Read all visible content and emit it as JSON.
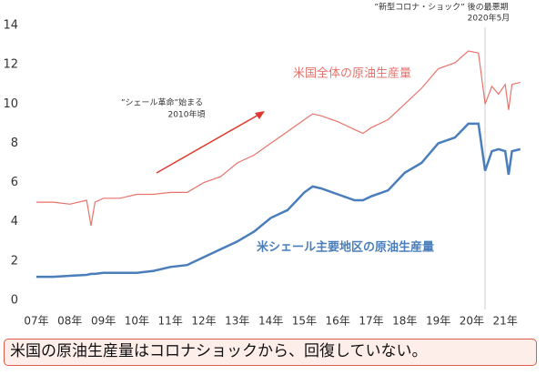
{
  "chart_data": {
    "type": "line",
    "x": [
      2007.0,
      2007.5,
      2008.0,
      2008.5,
      2008.63,
      2008.75,
      2009.0,
      2009.5,
      2010.0,
      2010.5,
      2011.0,
      2011.5,
      2012.0,
      2012.5,
      2013.0,
      2013.5,
      2014.0,
      2014.5,
      2015.0,
      2015.25,
      2015.5,
      2016.0,
      2016.5,
      2016.75,
      2017.0,
      2017.5,
      2018.0,
      2018.5,
      2019.0,
      2019.5,
      2019.9,
      2020.2,
      2020.4,
      2020.6,
      2020.8,
      2021.0,
      2021.1,
      2021.2,
      2021.45
    ],
    "series": [
      {
        "name": "米国全体の原油生産量",
        "color": "#e8736c",
        "values": [
          5.0,
          5.0,
          4.9,
          5.1,
          3.8,
          5.0,
          5.2,
          5.2,
          5.4,
          5.4,
          5.5,
          5.5,
          6.0,
          6.3,
          7.0,
          7.4,
          8.0,
          8.6,
          9.2,
          9.5,
          9.4,
          9.1,
          8.7,
          8.5,
          8.8,
          9.2,
          10.0,
          10.8,
          11.8,
          12.1,
          12.7,
          12.6,
          10.0,
          10.9,
          10.5,
          11.0,
          9.7,
          11.0,
          11.1
        ]
      },
      {
        "name": "米シェール主要地区の原油生産量",
        "color": "#4a7ebb",
        "values": [
          1.2,
          1.2,
          1.25,
          1.3,
          1.35,
          1.35,
          1.4,
          1.4,
          1.4,
          1.5,
          1.7,
          1.8,
          2.2,
          2.6,
          3.0,
          3.5,
          4.2,
          4.6,
          5.5,
          5.8,
          5.7,
          5.4,
          5.1,
          5.1,
          5.3,
          5.6,
          6.5,
          7.0,
          8.0,
          8.3,
          9.0,
          9.0,
          6.6,
          7.6,
          7.7,
          7.6,
          6.4,
          7.6,
          7.7
        ]
      }
    ],
    "xlim": [
      2007,
      2022
    ],
    "xticks": [
      {
        "value": 2007,
        "label": "07年"
      },
      {
        "value": 2008,
        "label": "08年"
      },
      {
        "value": 2009,
        "label": "09年"
      },
      {
        "value": 2010,
        "label": "10年"
      },
      {
        "value": 2011,
        "label": "11年"
      },
      {
        "value": 2012,
        "label": "12年"
      },
      {
        "value": 2013,
        "label": "13年"
      },
      {
        "value": 2014,
        "label": "14年"
      },
      {
        "value": 2015,
        "label": "15年"
      },
      {
        "value": 2016,
        "label": "16年"
      },
      {
        "value": 2017,
        "label": "17年"
      },
      {
        "value": 2018,
        "label": "18年"
      },
      {
        "value": 2019,
        "label": "19年"
      },
      {
        "value": 2020,
        "label": "20年"
      },
      {
        "value": 2021,
        "label": "21年"
      }
    ],
    "ylim": [
      0,
      14
    ],
    "yticks": [
      0,
      2,
      4,
      6,
      8,
      10,
      12,
      14
    ],
    "annotations": [
      "”シェール革命”始まる",
      "2010年頃",
      "”新型コロナ・ショック” 後の最悪期",
      "2020年5月"
    ]
  },
  "caption": "米国の原油生産量はコロナショックから、回復していない。"
}
